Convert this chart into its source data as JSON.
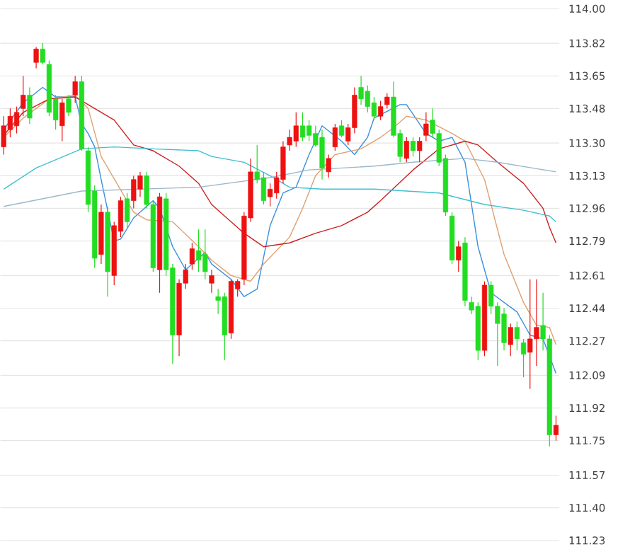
{
  "chart_data": {
    "type": "candlestick",
    "categories": [
      null,
      null,
      null,
      null,
      null,
      null,
      null,
      null,
      null,
      null,
      null,
      null,
      null,
      null,
      null,
      null,
      null,
      null,
      null,
      null,
      null,
      null,
      null,
      null,
      null,
      null,
      null,
      null,
      null,
      null,
      null,
      null,
      null,
      null,
      null,
      null,
      null,
      null,
      null,
      null,
      null,
      null,
      null,
      null,
      null,
      null,
      null,
      null,
      null,
      null,
      null,
      null,
      null,
      null,
      null,
      null,
      null,
      null,
      null,
      null,
      null,
      null,
      null,
      null,
      null,
      null,
      null,
      null,
      null,
      null,
      null,
      null,
      null,
      null,
      null,
      null,
      null,
      null,
      null,
      null,
      null,
      null,
      null,
      null,
      null,
      null
    ],
    "ohlc": [
      [
        113.28,
        113.44,
        113.24,
        113.39
      ],
      [
        113.37,
        113.48,
        113.33,
        113.44
      ],
      [
        113.39,
        113.49,
        113.35,
        113.46
      ],
      [
        113.48,
        113.65,
        113.44,
        113.55
      ],
      [
        113.55,
        113.59,
        113.4,
        113.43
      ],
      [
        113.72,
        113.8,
        113.69,
        113.79
      ],
      [
        113.79,
        113.82,
        113.71,
        113.72
      ],
      [
        113.71,
        113.73,
        113.44,
        113.46
      ],
      [
        113.53,
        113.55,
        113.37,
        113.42
      ],
      [
        113.39,
        113.53,
        113.31,
        113.51
      ],
      [
        113.53,
        113.55,
        113.44,
        113.46
      ],
      [
        113.55,
        113.65,
        113.51,
        113.62
      ],
      [
        113.62,
        113.65,
        113.26,
        113.27
      ],
      [
        113.26,
        113.28,
        112.94,
        112.98
      ],
      [
        113.05,
        113.08,
        112.65,
        112.7
      ],
      [
        112.72,
        112.98,
        112.67,
        112.94
      ],
      [
        112.94,
        112.97,
        112.5,
        112.63
      ],
      [
        112.61,
        112.89,
        112.56,
        112.87
      ],
      [
        112.84,
        113.02,
        112.81,
        113.0
      ],
      [
        113.01,
        113.04,
        112.86,
        112.89
      ],
      [
        113.0,
        113.13,
        112.96,
        113.11
      ],
      [
        113.06,
        113.15,
        113.02,
        113.13
      ],
      [
        113.13,
        113.15,
        112.96,
        112.98
      ],
      [
        112.98,
        113.0,
        112.63,
        112.65
      ],
      [
        112.64,
        113.04,
        112.52,
        113.02
      ],
      [
        113.01,
        113.04,
        112.61,
        112.64
      ],
      [
        112.65,
        112.67,
        112.15,
        112.3
      ],
      [
        112.3,
        112.59,
        112.19,
        112.57
      ],
      [
        112.57,
        112.67,
        112.54,
        112.64
      ],
      [
        112.67,
        112.78,
        112.64,
        112.75
      ],
      [
        112.74,
        112.85,
        112.63,
        112.69
      ],
      [
        112.72,
        112.85,
        112.59,
        112.63
      ],
      [
        112.57,
        112.64,
        112.52,
        112.61
      ],
      [
        112.5,
        112.54,
        112.41,
        112.48
      ],
      [
        112.5,
        112.52,
        112.17,
        112.3
      ],
      [
        112.31,
        112.59,
        112.28,
        112.58
      ],
      [
        112.54,
        112.59,
        112.5,
        112.58
      ],
      [
        112.59,
        112.94,
        112.56,
        112.92
      ],
      [
        112.91,
        113.22,
        112.89,
        113.15
      ],
      [
        113.15,
        113.29,
        113.09,
        113.11
      ],
      [
        113.12,
        113.15,
        112.98,
        113.0
      ],
      [
        113.02,
        113.09,
        112.97,
        113.06
      ],
      [
        113.04,
        113.15,
        113.01,
        113.12
      ],
      [
        113.11,
        113.31,
        113.09,
        113.28
      ],
      [
        113.29,
        113.37,
        113.26,
        113.33
      ],
      [
        113.31,
        113.46,
        113.28,
        113.39
      ],
      [
        113.39,
        113.46,
        113.31,
        113.33
      ],
      [
        113.39,
        113.42,
        113.31,
        113.34
      ],
      [
        113.35,
        113.39,
        113.28,
        113.29
      ],
      [
        113.33,
        113.37,
        113.11,
        113.17
      ],
      [
        113.15,
        113.24,
        113.12,
        113.22
      ],
      [
        113.28,
        113.4,
        113.26,
        113.38
      ],
      [
        113.39,
        113.42,
        113.33,
        113.34
      ],
      [
        113.31,
        113.4,
        113.29,
        113.38
      ],
      [
        113.38,
        113.59,
        113.35,
        113.55
      ],
      [
        113.59,
        113.65,
        113.5,
        113.53
      ],
      [
        113.57,
        113.6,
        113.46,
        113.49
      ],
      [
        113.51,
        113.54,
        113.42,
        113.44
      ],
      [
        113.44,
        113.52,
        113.42,
        113.49
      ],
      [
        113.5,
        113.56,
        113.48,
        113.54
      ],
      [
        113.54,
        113.62,
        113.33,
        113.34
      ],
      [
        113.35,
        113.37,
        113.2,
        113.23
      ],
      [
        113.22,
        113.33,
        113.2,
        113.31
      ],
      [
        113.31,
        113.33,
        113.23,
        113.26
      ],
      [
        113.26,
        113.33,
        113.2,
        113.31
      ],
      [
        113.34,
        113.46,
        113.31,
        113.4
      ],
      [
        113.42,
        113.48,
        113.33,
        113.35
      ],
      [
        113.35,
        113.37,
        113.18,
        113.2
      ],
      [
        113.22,
        113.24,
        112.92,
        112.94
      ],
      [
        112.92,
        112.94,
        112.67,
        112.69
      ],
      [
        112.69,
        112.79,
        112.63,
        112.76
      ],
      [
        112.78,
        112.81,
        112.45,
        112.48
      ],
      [
        112.47,
        112.5,
        112.41,
        112.43
      ],
      [
        112.45,
        112.47,
        112.17,
        112.22
      ],
      [
        112.22,
        112.58,
        112.19,
        112.56
      ],
      [
        112.56,
        112.58,
        112.41,
        112.45
      ],
      [
        112.45,
        112.47,
        112.14,
        112.36
      ],
      [
        112.41,
        112.44,
        112.22,
        112.26
      ],
      [
        112.25,
        112.36,
        112.19,
        112.34
      ],
      [
        112.34,
        112.37,
        112.22,
        112.28
      ],
      [
        112.26,
        112.28,
        112.08,
        112.2
      ],
      [
        112.21,
        112.59,
        112.02,
        112.28
      ],
      [
        112.28,
        112.59,
        112.14,
        112.34
      ],
      [
        112.35,
        112.52,
        112.22,
        112.28
      ],
      [
        112.28,
        112.3,
        111.72,
        111.78
      ],
      [
        111.78,
        111.88,
        111.75,
        111.83
      ]
    ],
    "colors": [
      "#ee1111",
      "#ee1111",
      "#ee1111",
      "#ee1111",
      "#22dd22",
      "#ee1111",
      "#22dd22",
      "#22dd22",
      "#22dd22",
      "#ee1111",
      "#22dd22",
      "#ee1111",
      "#22dd22",
      "#22dd22",
      "#22dd22",
      "#ee1111",
      "#22dd22",
      "#ee1111",
      "#ee1111",
      "#22dd22",
      "#ee1111",
      "#ee1111",
      "#22dd22",
      "#22dd22",
      "#ee1111",
      "#22dd22",
      "#22dd22",
      "#ee1111",
      "#ee1111",
      "#ee1111",
      "#22dd22",
      "#22dd22",
      "#ee1111",
      "#22dd22",
      "#22dd22",
      "#ee1111",
      "#ee1111",
      "#ee1111",
      "#ee1111",
      "#22dd22",
      "#22dd22",
      "#ee1111",
      "#ee1111",
      "#ee1111",
      "#ee1111",
      "#ee1111",
      "#22dd22",
      "#22dd22",
      "#22dd22",
      "#22dd22",
      "#ee1111",
      "#ee1111",
      "#22dd22",
      "#ee1111",
      "#ee1111",
      "#22dd22",
      "#22dd22",
      "#22dd22",
      "#ee1111",
      "#ee1111",
      "#22dd22",
      "#22dd22",
      "#ee1111",
      "#22dd22",
      "#ee1111",
      "#ee1111",
      "#22dd22",
      "#22dd22",
      "#22dd22",
      "#22dd22",
      "#ee1111",
      "#22dd22",
      "#22dd22",
      "#22dd22",
      "#ee1111",
      "#22dd22",
      "#22dd22",
      "#22dd22",
      "#ee1111",
      "#22dd22",
      "#22dd22",
      "#ee1111",
      "#ee1111",
      "#22dd22",
      "#22dd22",
      "#ee1111"
    ],
    "series": [
      {
        "type": "line",
        "color": "#3a8fe0",
        "values": [
          113.37,
          null,
          null,
          113.51,
          null,
          null,
          113.59,
          null,
          113.54,
          null,
          null,
          113.54,
          113.4,
          113.35,
          113.28,
          113.11,
          null,
          112.79,
          112.8,
          null,
          112.91,
          null,
          null,
          113.0,
          112.96,
          null,
          112.76,
          null,
          112.64,
          null,
          null,
          112.73,
          112.67,
          null,
          null,
          112.59,
          null,
          112.5,
          null,
          112.54,
          null,
          112.87,
          null,
          113.04,
          null,
          113.07,
          null,
          113.24,
          null,
          113.39,
          null,
          null,
          113.31,
          null,
          113.24,
          null,
          113.33,
          113.43,
          null,
          null,
          null,
          113.5,
          113.5,
          null,
          null,
          113.35,
          null,
          113.31,
          null,
          113.33,
          null,
          113.2,
          null,
          112.76,
          null,
          112.52,
          null,
          null,
          null,
          112.42,
          null,
          112.3,
          null,
          112.28,
          null,
          112.1
        ]
      },
      {
        "type": "line",
        "color": "#e0a070",
        "values": [
          113.33,
          null,
          null,
          113.43,
          null,
          null,
          null,
          113.53,
          null,
          null,
          null,
          113.55,
          null,
          113.48,
          null,
          113.23,
          null,
          null,
          null,
          null,
          112.94,
          null,
          112.9,
          null,
          null,
          null,
          112.89,
          null,
          null,
          null,
          112.76,
          null,
          112.69,
          null,
          null,
          112.61,
          null,
          null,
          112.58,
          null,
          112.67,
          null,
          null,
          null,
          112.81,
          null,
          112.96,
          null,
          113.13,
          null,
          null,
          113.24,
          null,
          null,
          null,
          113.27,
          null,
          null,
          113.33,
          null,
          113.38,
          null,
          113.44,
          null,
          null,
          113.42,
          null,
          null,
          null,
          113.35,
          null,
          113.31,
          null,
          null,
          113.11,
          null,
          null,
          112.72,
          null,
          null,
          112.47,
          null,
          112.35,
          null,
          112.34,
          112.25
        ]
      },
      {
        "type": "line",
        "color": "#cc2020",
        "values": [
          113.34,
          null,
          null,
          113.46,
          null,
          null,
          null,
          113.53,
          null,
          null,
          null,
          113.54,
          null,
          113.5,
          null,
          null,
          null,
          113.42,
          null,
          null,
          113.29,
          null,
          null,
          113.26,
          null,
          null,
          null,
          113.18,
          null,
          null,
          113.09,
          null,
          112.98,
          null,
          null,
          null,
          null,
          112.83,
          null,
          null,
          112.76,
          null,
          null,
          null,
          112.78,
          null,
          null,
          null,
          112.83,
          null,
          null,
          null,
          112.87,
          null,
          null,
          null,
          112.94,
          null,
          113.0,
          null,
          null,
          null,
          null,
          113.16,
          null,
          null,
          null,
          113.27,
          null,
          null,
          null,
          113.31,
          null,
          113.29,
          null,
          null,
          113.2,
          null,
          null,
          null,
          113.09,
          null,
          null,
          112.96,
          112.86,
          112.78
        ]
      },
      {
        "type": "line",
        "color": "#40c0d0",
        "values": [
          113.06,
          null,
          null,
          null,
          null,
          113.17,
          null,
          null,
          null,
          null,
          null,
          null,
          113.27,
          null,
          null,
          null,
          null,
          113.28,
          null,
          null,
          null,
          null,
          null,
          113.27,
          null,
          null,
          null,
          null,
          null,
          null,
          113.26,
          null,
          113.23,
          null,
          null,
          null,
          null,
          113.2,
          null,
          null,
          null,
          113.13,
          null,
          null,
          113.07,
          null,
          null,
          null,
          null,
          113.06,
          null,
          null,
          null,
          null,
          null,
          null,
          null,
          113.06,
          null,
          null,
          null,
          null,
          null,
          null,
          null,
          null,
          null,
          113.04,
          null,
          null,
          null,
          null,
          null,
          null,
          112.98,
          null,
          null,
          null,
          null,
          null,
          112.95,
          null,
          null,
          null,
          112.92,
          112.89
        ]
      },
      {
        "type": "line",
        "color": "#9ab8cc",
        "values": [
          112.97,
          null,
          null,
          null,
          null,
          null,
          null,
          null,
          null,
          null,
          null,
          null,
          113.05,
          null,
          null,
          null,
          null,
          null,
          null,
          null,
          null,
          null,
          null,
          null,
          null,
          null,
          null,
          null,
          null,
          null,
          113.07,
          null,
          null,
          null,
          null,
          null,
          null,
          null,
          null,
          null,
          null,
          113.12,
          null,
          null,
          null,
          null,
          null,
          113.16,
          null,
          null,
          null,
          null,
          null,
          null,
          null,
          null,
          null,
          113.18,
          null,
          null,
          null,
          null,
          null,
          113.2,
          null,
          null,
          null,
          null,
          null,
          null,
          null,
          113.22,
          null,
          null,
          null,
          null,
          113.2,
          null,
          null,
          null,
          null,
          null,
          null,
          null,
          null,
          113.15
        ]
      }
    ],
    "ylim": [
      111.23,
      114.0
    ],
    "yticks": [
      111.23,
      {
        "value": 111.4,
        "label": "111.40"
      },
      111.57,
      111.75,
      111.92,
      112.09,
      112.27,
      112.44,
      112.61,
      112.79,
      112.96,
      113.13,
      {
        "value": 113.3,
        "label": "113.30"
      },
      113.48,
      113.65,
      113.82,
      {
        "value": 114.0,
        "label": "114.00"
      }
    ],
    "grid": "y"
  }
}
